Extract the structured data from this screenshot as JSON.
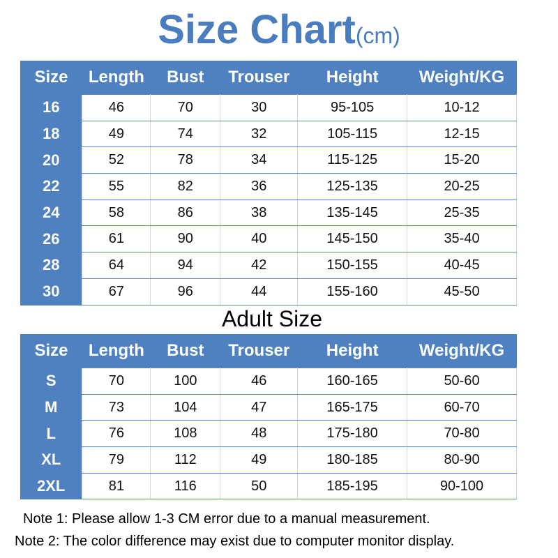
{
  "title": "Size Chart",
  "unit": "(cm)",
  "headers": [
    "Size",
    "Length",
    "Bust",
    "Trouser",
    "Height",
    "Weight/KG"
  ],
  "kids_rows": [
    [
      "16",
      "46",
      "70",
      "30",
      "95-105",
      "10-12"
    ],
    [
      "18",
      "49",
      "74",
      "32",
      "105-115",
      "12-15"
    ],
    [
      "20",
      "52",
      "78",
      "34",
      "115-125",
      "15-20"
    ],
    [
      "22",
      "55",
      "82",
      "36",
      "125-135",
      "20-25"
    ],
    [
      "24",
      "58",
      "86",
      "38",
      "135-145",
      "25-35"
    ],
    [
      "26",
      "61",
      "90",
      "40",
      "145-150",
      "35-40"
    ],
    [
      "28",
      "64",
      "94",
      "42",
      "150-155",
      "40-45"
    ],
    [
      "30",
      "67",
      "96",
      "44",
      "155-160",
      "45-50"
    ]
  ],
  "adult_title": "Adult Size",
  "adult_rows": [
    [
      "S",
      "70",
      "100",
      "46",
      "160-165",
      "50-60"
    ],
    [
      "M",
      "73",
      "104",
      "47",
      "165-175",
      "60-70"
    ],
    [
      "L",
      "76",
      "108",
      "48",
      "175-180",
      "70-80"
    ],
    [
      "XL",
      "79",
      "112",
      "49",
      "180-185",
      "80-90"
    ],
    [
      "2XL",
      "81",
      "116",
      "50",
      "185-195",
      "90-100"
    ]
  ],
  "notes": [
    "Note 1: Please allow 1-3 CM error due to a manual measurement.",
    "Note 2: The color difference may exist due to computer monitor display."
  ],
  "colors": {
    "accent": "#4f80bf",
    "title": "#4a7cc0"
  }
}
